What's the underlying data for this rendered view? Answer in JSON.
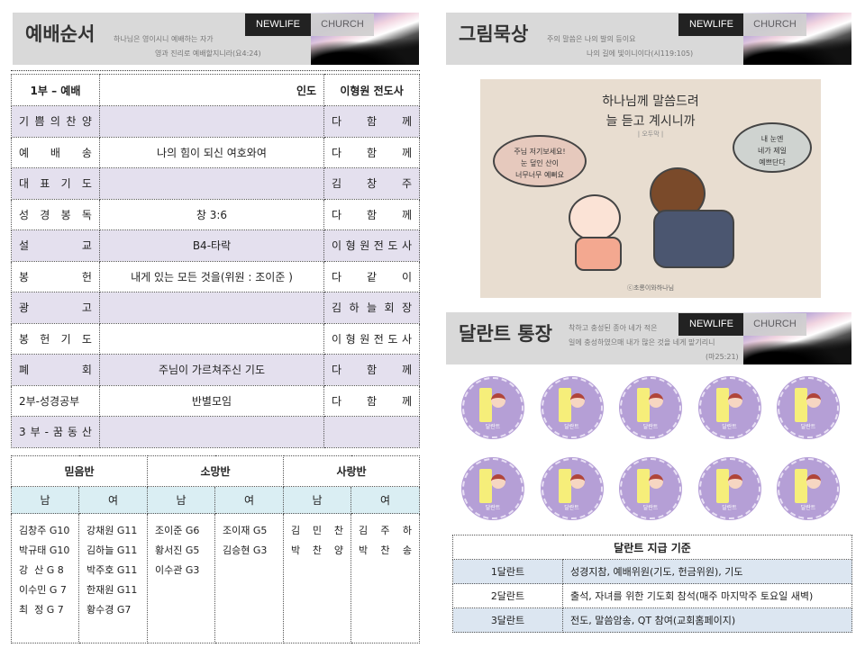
{
  "brand": {
    "newlife": "NEWLIFE",
    "church": "CHURCH"
  },
  "worship": {
    "title": "예배순서",
    "verse1": "하나님은 영이시니 예배하는 자가",
    "verse2": "영과 진리로 예배할지니라(요4:24)",
    "header": {
      "part": "1부 – 예배",
      "lead_label": "인도",
      "leader": "이형원 전도사"
    },
    "rows": [
      {
        "item": "기 쁨 의 찬 양",
        "content": "",
        "person": "다 함 께"
      },
      {
        "item": "예 배 송",
        "content": "나의 힘이 되신 여호와여",
        "person": "다 함 께"
      },
      {
        "item": "대 표 기 도",
        "content": "",
        "person": "김 창 주"
      },
      {
        "item": "성 경 봉 독",
        "content": "창 3:6",
        "person": "다 함 께"
      },
      {
        "item": "설 교",
        "content": "B4-타락",
        "person": "이 형 원 전 도 사"
      },
      {
        "item": "봉 헌",
        "content": "내게 있는 모든 것을(위원 : 조이준 )",
        "person": "다 같 이"
      },
      {
        "item": "광 고",
        "content": "",
        "person": "김 하 늘 회 장"
      },
      {
        "item": "봉 헌 기 도",
        "content": "",
        "person": "이 형 원 전 도 사"
      },
      {
        "item": "폐 회",
        "content": "주님이 가르쳐주신 기도",
        "person": "다 함 께"
      },
      {
        "item": "2부-성경공부",
        "content": "반별모임",
        "person": "다 함 께"
      },
      {
        "item": "3 부 - 꿈 동 산",
        "content": "",
        "person": ""
      }
    ]
  },
  "classes": {
    "groups": [
      "믿음반",
      "소망반",
      "사랑반"
    ],
    "male": "남",
    "female": "여",
    "members": [
      [
        "김창주 G10",
        "박규태 G10",
        "강  산 G 8",
        "이수민 G 7",
        "최  정 G 7"
      ],
      [
        "강채원 G11",
        "김하늘 G11",
        "박주호 G11",
        "한재원 G11",
        "황수경 G7"
      ],
      [
        "조이준 G6",
        "황서진 G5",
        "이수관 G3"
      ],
      [
        "조이재 G5",
        "김승현 G3"
      ],
      [
        "김 민 찬",
        "박 찬 양"
      ],
      [
        "김 주 하",
        "박 찬 송"
      ]
    ]
  },
  "meditation": {
    "title": "그림묵상",
    "verse1": "주의 말씀은 나의 발의 등이요",
    "verse2": "나의 길에 빛이니이다(시119:105)",
    "image": {
      "line1": "하나님께 말씀드려",
      "line2": "늘 듣고 계시니까",
      "author": "| 오두막 |",
      "bubble_left": [
        "주님 저기보세요!",
        "눈 덮인 산이",
        "너무너무 예뻐요"
      ],
      "bubble_right": [
        "내 눈엔",
        "네가 제일",
        "예쁘단다"
      ],
      "credit": "ⓒ초롱이와하나님"
    }
  },
  "talent": {
    "title": "달란트 통장",
    "verse1": "착하고 충성된 종아 네가 적은",
    "verse2": "일에 충성하였으매 내가 많은 것을 네게 맡기리니",
    "verse3": "(마25:21)",
    "coin_label": "달란트",
    "coin_count": 10,
    "table_title": "달란트 지급 기준",
    "rows": [
      {
        "level": "1달란트",
        "criteria": "성경지참, 예배위원(기도, 헌금위원), 기도"
      },
      {
        "level": "2달란트",
        "criteria": "출석, 자녀를 위한 기도회 참석(매주 마지막주 토요일 새벽)"
      },
      {
        "level": "3달란트",
        "criteria": "전도, 말씀암송, QT 참여(교회홈페이지)"
      }
    ],
    "colors": {
      "coin": "#b59fd6",
      "row_highlight": "#dce6f1"
    }
  },
  "colors": {
    "lavender_row": "#e4e0ee",
    "subheader_blue": "#daeef3",
    "header_gray": "#d9d9d9"
  }
}
